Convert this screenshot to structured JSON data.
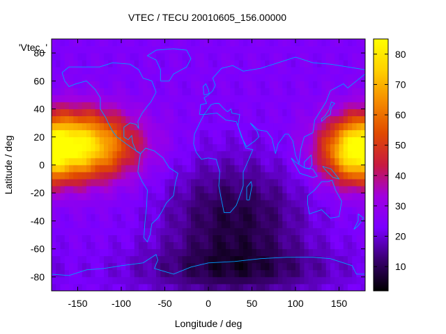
{
  "chart_data": {
    "type": "heatmap",
    "title": "VTEC / TECU 20010605_156.00000",
    "xlabel": "Longitude / deg",
    "ylabel": "Latitude / deg",
    "series_key_label": "'Vtec_'",
    "xlim": [
      -180,
      180
    ],
    "ylim": [
      -90,
      90
    ],
    "x_ticks": [
      -150,
      -100,
      -50,
      0,
      50,
      100,
      150
    ],
    "y_ticks": [
      -80,
      -60,
      -40,
      -20,
      0,
      20,
      40,
      60,
      80
    ],
    "colorbar": {
      "range": [
        2,
        85
      ],
      "ticks": [
        10,
        20,
        30,
        40,
        50,
        60,
        70,
        80
      ],
      "colormap": [
        "#000000",
        "#3a0070",
        "#7a00ff",
        "#a000e0",
        "#c81a40",
        "#e04a00",
        "#f58a00",
        "#ffd000",
        "#ffff00"
      ]
    },
    "background_level": 24,
    "features": [
      {
        "lon": -150,
        "lat": 14,
        "sigma_lon": 45,
        "sigma_lat": 17,
        "amplitude": 58
      },
      {
        "lon": 165,
        "lat": 8,
        "sigma_lon": 25,
        "sigma_lat": 16,
        "amplitude": 30
      },
      {
        "lon": 30,
        "lat": -40,
        "sigma_lon": 55,
        "sigma_lat": 30,
        "amplitude": -16
      },
      {
        "lon": 30,
        "lat": -75,
        "sigma_lon": 90,
        "sigma_lat": 12,
        "amplitude": -10
      }
    ],
    "grid": false,
    "legend_position": "top-left",
    "overlay": "coastlines",
    "overlay_color": "#00a0ff"
  }
}
